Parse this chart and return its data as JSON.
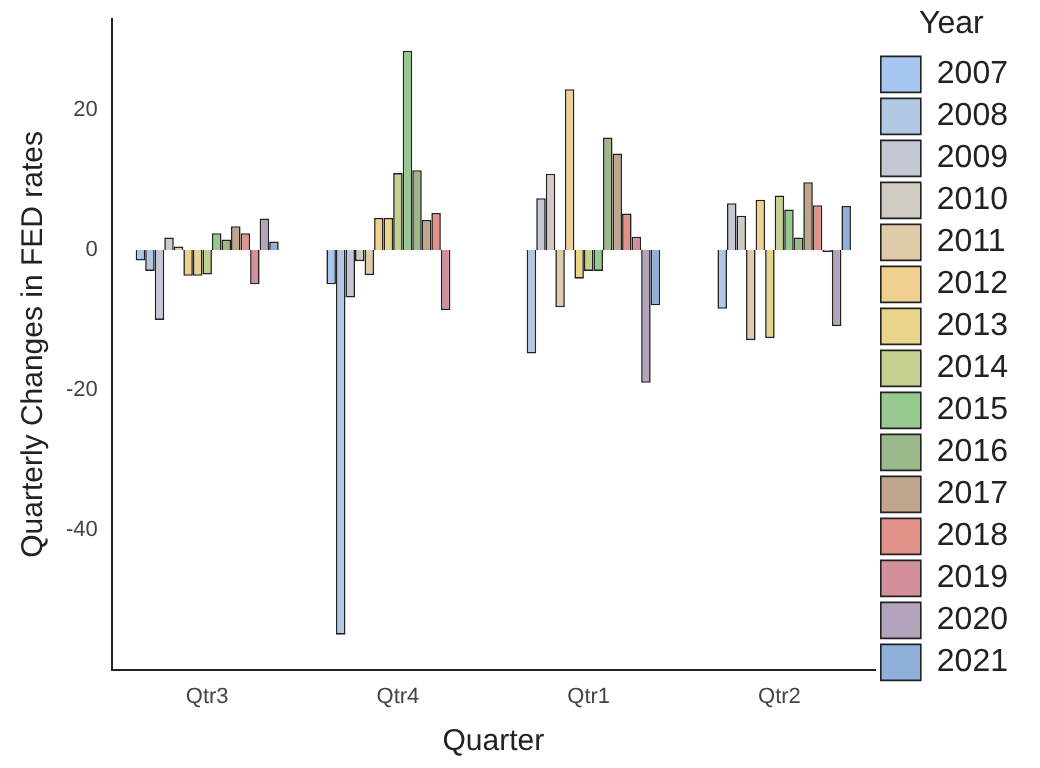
{
  "chart_data": {
    "type": "bar",
    "xlabel": "Quarter",
    "ylabel": "Quarterly Changes in FED rates",
    "legend_title": "Year",
    "legend": "right",
    "grid": false,
    "categories": [
      "Qtr3",
      "Qtr4",
      "Qtr1",
      "Qtr2"
    ],
    "ylim": [
      -60,
      33
    ],
    "yticks": [
      -40,
      -20,
      0,
      20
    ],
    "series": [
      {
        "name": "2007",
        "color": "#a6c8f0",
        "values": [
          -1.5,
          -4.9,
          null,
          null
        ]
      },
      {
        "name": "2008",
        "color": "#b0c8e4",
        "values": [
          -3,
          -55,
          -14.8,
          -8.4
        ]
      },
      {
        "name": "2009",
        "color": "#c3c8d4",
        "values": [
          -10,
          -6.8,
          7.4,
          6.7
        ]
      },
      {
        "name": "2010",
        "color": "#cfcbc3",
        "values": [
          1.8,
          -1.6,
          10.9,
          4.9
        ]
      },
      {
        "name": "2011",
        "color": "#e0cba8",
        "values": [
          0.5,
          -3.6,
          -8.2,
          -12.9
        ]
      },
      {
        "name": "2012",
        "color": "#f0d090",
        "values": [
          -3.7,
          4.6,
          23,
          7.2
        ]
      },
      {
        "name": "2013",
        "color": "#e9d58a",
        "values": [
          -3.7,
          4.6,
          -4.1,
          -12.6
        ]
      },
      {
        "name": "2014",
        "color": "#c5d08e",
        "values": [
          -3.5,
          11,
          -3,
          7.8
        ]
      },
      {
        "name": "2015",
        "color": "#95c98d",
        "values": [
          2.4,
          28.5,
          -3,
          5.8
        ]
      },
      {
        "name": "2016",
        "color": "#9ab88a",
        "values": [
          1.5,
          11.4,
          16.1,
          1.8
        ]
      },
      {
        "name": "2017",
        "color": "#bfa58b",
        "values": [
          3.4,
          4.3,
          13.8,
          9.7
        ]
      },
      {
        "name": "2018",
        "color": "#e3928a",
        "values": [
          2.4,
          5.3,
          5.2,
          6.4
        ]
      },
      {
        "name": "2019",
        "color": "#d4909a",
        "values": [
          -4.9,
          -8.6,
          1.9,
          -0.3
        ]
      },
      {
        "name": "2020",
        "color": "#b3a3bb",
        "values": [
          4.5,
          0,
          -19,
          -10.9
        ]
      },
      {
        "name": "2021",
        "color": "#8fb0d8",
        "values": [
          1.2,
          null,
          -7.9,
          6.3
        ]
      }
    ]
  }
}
